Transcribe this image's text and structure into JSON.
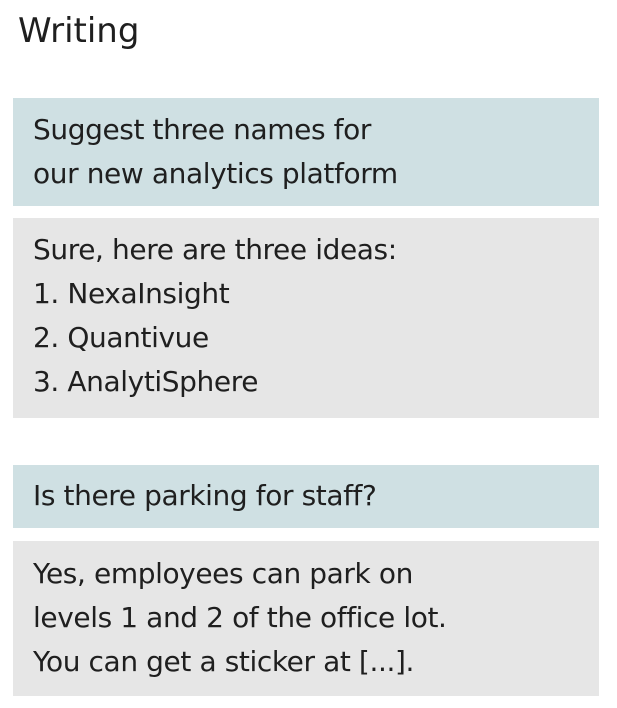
{
  "header": {
    "title": "Writing"
  },
  "conversation": [
    {
      "role": "user",
      "lines": [
        "Suggest three names for",
        "our new analytics platform"
      ]
    },
    {
      "role": "assistant",
      "lines": [
        "Sure, here are three ideas:",
        "1. NexaInsight",
        "2. Quantivue",
        "3. AnalytiSphere"
      ]
    },
    {
      "role": "user",
      "lines": [
        "Is there parking for staff?"
      ]
    },
    {
      "role": "assistant",
      "lines": [
        "Yes, employees can park on",
        "levels 1 and 2 of the office lot.",
        "You can get a sticker at [...]."
      ]
    }
  ],
  "colors": {
    "user_bubble": "#cfe0e3",
    "assistant_bubble": "#e6e6e6",
    "text": "#1f1f1f",
    "background": "#ffffff"
  }
}
